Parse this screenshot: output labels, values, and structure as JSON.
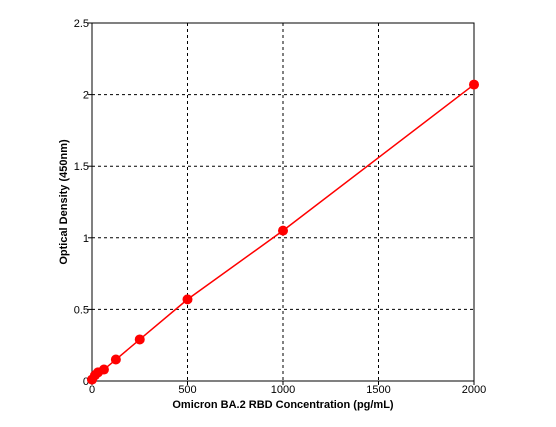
{
  "chart_data": {
    "type": "scatter",
    "title": "",
    "xlabel": "Omicron BA.2 RBD Concentration (pg/mL)",
    "ylabel": "Optical Density (450nm)",
    "xlim": [
      0,
      2000
    ],
    "ylim": [
      0,
      2.5
    ],
    "x_ticks": [
      0,
      500,
      1000,
      1500,
      2000
    ],
    "y_ticks": [
      0,
      0.5,
      1,
      1.5,
      2,
      2.5
    ],
    "x_tick_labels": [
      "0",
      "500",
      "1000",
      "1500",
      "2000"
    ],
    "y_tick_labels": [
      "0",
      "0.5",
      "1",
      "1.5",
      "2",
      "2.5"
    ],
    "grid": true,
    "series": [
      {
        "points": [
          {
            "x": 0,
            "y": 0.01
          },
          {
            "x": 15.6,
            "y": 0.04
          },
          {
            "x": 31.25,
            "y": 0.06
          },
          {
            "x": 62.5,
            "y": 0.08
          },
          {
            "x": 125,
            "y": 0.15
          },
          {
            "x": 250,
            "y": 0.29
          },
          {
            "x": 500,
            "y": 0.57
          },
          {
            "x": 1000,
            "y": 1.05
          },
          {
            "x": 2000,
            "y": 2.07
          }
        ],
        "color": "#ff0000",
        "fit_line": true
      }
    ]
  }
}
